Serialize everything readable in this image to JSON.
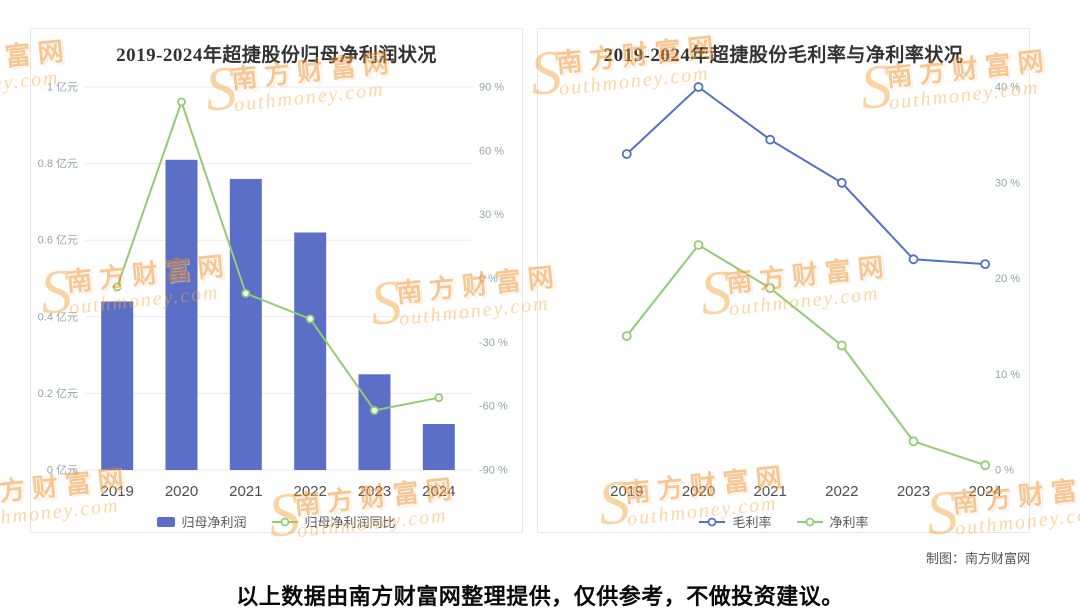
{
  "chart_data": [
    {
      "type": "bar",
      "subtype": "bar+line combo, dual y-axes",
      "title": "2019-2024年超捷股份归母净利润状况",
      "categories": [
        "2019",
        "2020",
        "2021",
        "2022",
        "2023",
        "2024"
      ],
      "series": [
        {
          "name": "归母净利润",
          "type": "bar",
          "axis": "left",
          "unit": "亿元",
          "color": "#5b6fc6",
          "values": [
            0.44,
            0.81,
            0.76,
            0.62,
            0.25,
            0.12
          ]
        },
        {
          "name": "归母净利润同比",
          "type": "line",
          "axis": "right",
          "unit": "%",
          "color": "#91cc75",
          "values": [
            -4,
            83,
            -7,
            -19,
            -62,
            -56
          ]
        }
      ],
      "left_axis": {
        "min": 0,
        "max": 1,
        "step": 0.2,
        "unit": "亿元",
        "labels": [
          "0 亿元",
          "0.2 亿元",
          "0.4 亿元",
          "0.6 亿元",
          "0.8 亿元",
          "1 亿元"
        ]
      },
      "right_axis": {
        "min": -90,
        "max": 90,
        "step": 30,
        "unit": "%",
        "labels": [
          "-90 %",
          "-60 %",
          "-30 %",
          "0 %",
          "30 %",
          "60 %",
          "90 %"
        ]
      },
      "grid": true,
      "legend_position": "bottom"
    },
    {
      "type": "line",
      "title": "2019-2024年超捷股份毛利率与净利率状况",
      "categories": [
        "2019",
        "2020",
        "2021",
        "2022",
        "2023",
        "2024"
      ],
      "series": [
        {
          "name": "毛利率",
          "type": "line",
          "axis": "right",
          "unit": "%",
          "color": "#5470c6",
          "values": [
            33,
            40,
            34.5,
            30,
            22,
            21.5
          ]
        },
        {
          "name": "净利率",
          "type": "line",
          "axis": "right",
          "unit": "%",
          "color": "#91cc75",
          "values": [
            14,
            23.5,
            19,
            13,
            3,
            0.5
          ]
        }
      ],
      "right_axis": {
        "min": 0,
        "max": 40,
        "step": 10,
        "unit": "%",
        "labels": [
          "0 %",
          "10 %",
          "20 %",
          "30 %",
          "40 %"
        ]
      },
      "grid": false,
      "legend_position": "bottom"
    }
  ],
  "watermark": {
    "cn": "南方财富网",
    "en_s": "S",
    "en_rest": "outhmoney.com"
  },
  "footer": {
    "credit": "制图：南方财富网",
    "disclaimer": "以上数据由南方财富网整理提供，仅供参考，不做投资建议。"
  }
}
